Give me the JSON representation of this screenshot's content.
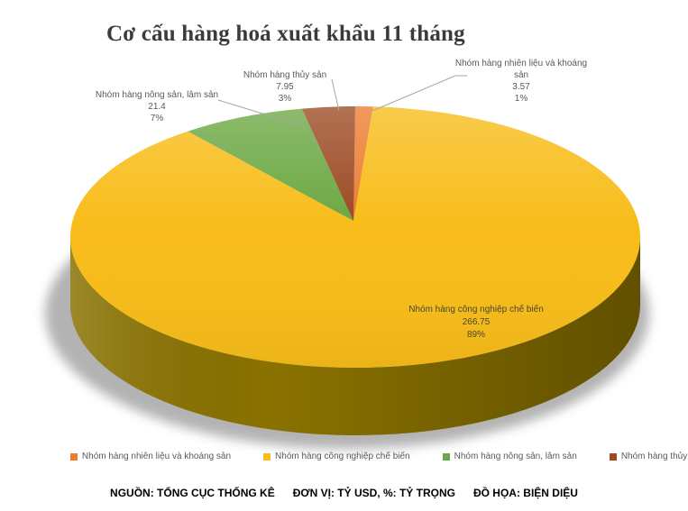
{
  "title": "Cơ cấu hàng hoá xuất khẩu 11 tháng",
  "chart_data": {
    "type": "pie",
    "is_3d": true,
    "title": "Cơ cấu hàng hoá xuất khẩu 11 tháng",
    "unit": "TỶ USD",
    "legend_position": "bottom",
    "start_angle_deg": 0,
    "direction": "clockwise",
    "slices": [
      {
        "label": "Nhóm hàng nhiên liệu và khoáng sản",
        "value": 3.57,
        "pct": 1,
        "pct_label": "1%",
        "color": "#ED7D31",
        "side_color": "#b05a1e"
      },
      {
        "label": "Nhóm hàng công nghiệp chế biến",
        "value": 266.75,
        "pct": 89,
        "pct_label": "89%",
        "color": "#F8BD1A",
        "side_color": "#8a7200"
      },
      {
        "label": "Nhóm hàng nông sản, lâm sản",
        "value": 21.4,
        "pct": 7,
        "pct_label": "7%",
        "color": "#6CA843",
        "side_color": "#4f7d2e"
      },
      {
        "label": "Nhóm hàng thủy sản",
        "value": 7.95,
        "pct": 3,
        "pct_label": "3%",
        "color": "#9C4A23",
        "side_color": "#6e3315"
      }
    ]
  },
  "footer": {
    "source": "NGUỒN: TỔNG CỤC THỐNG KÊ",
    "unit": "ĐƠN VỊ: TỶ USD, %: TỶ TRỌNG",
    "credit": "ĐỒ HỌA: BIỆN DIỆU"
  }
}
